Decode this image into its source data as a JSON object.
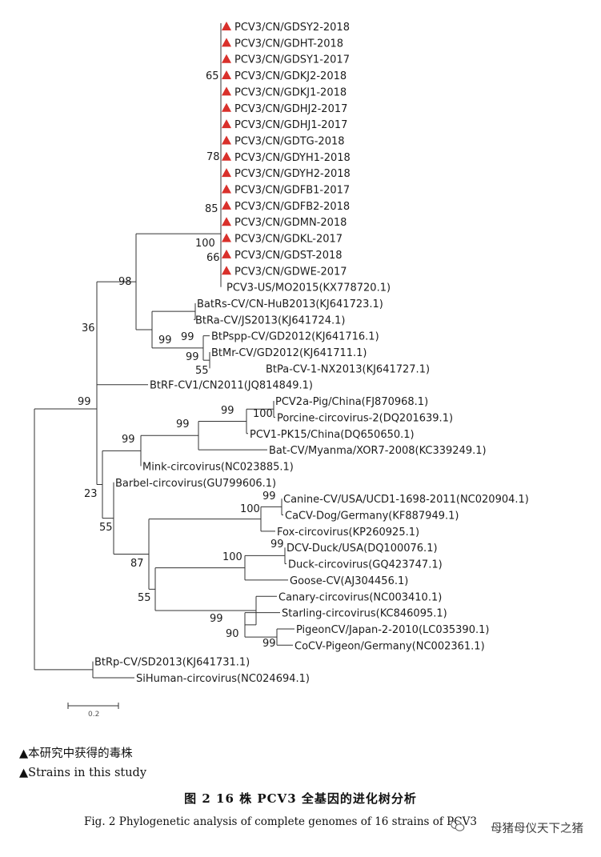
{
  "tree": {
    "leaves": [
      {
        "label": "PCV3/CN/GDSY2-2018",
        "marked": true
      },
      {
        "label": "PCV3/CN/GDHT-2018",
        "marked": true
      },
      {
        "label": "PCV3/CN/GDSY1-2017",
        "marked": true
      },
      {
        "label": "PCV3/CN/GDKJ2-2018",
        "marked": true
      },
      {
        "label": "PCV3/CN/GDKJ1-2018",
        "marked": true
      },
      {
        "label": "PCV3/CN/GDHJ2-2017",
        "marked": true
      },
      {
        "label": "PCV3/CN/GDHJ1-2017",
        "marked": true
      },
      {
        "label": "PCV3/CN/GDTG-2018",
        "marked": true
      },
      {
        "label": "PCV3/CN/GDYH1-2018",
        "marked": true
      },
      {
        "label": "PCV3/CN/GDYH2-2018",
        "marked": true
      },
      {
        "label": "PCV3/CN/GDFB1-2017",
        "marked": true
      },
      {
        "label": "PCV3/CN/GDFB2-2018",
        "marked": true
      },
      {
        "label": "PCV3/CN/GDMN-2018",
        "marked": true
      },
      {
        "label": "PCV3/CN/GDKL-2017",
        "marked": true
      },
      {
        "label": "PCV3/CN/GDST-2018",
        "marked": true
      },
      {
        "label": "PCV3/CN/GDWE-2017",
        "marked": true
      },
      {
        "label": "PCV3-US/MO2015(KX778720.1)",
        "marked": false
      },
      {
        "label": "BatRs-CV/CN-HuB2013(KJ641723.1)",
        "marked": false
      },
      {
        "label": "BtRa-CV/JS2013(KJ641724.1)",
        "marked": false
      },
      {
        "label": "BtPspp-CV/GD2012(KJ641716.1)",
        "marked": false
      },
      {
        "label": "BtMr-CV/GD2012(KJ641711.1)",
        "marked": false
      },
      {
        "label": "BtPa-CV-1-NX2013(KJ641727.1)",
        "marked": false
      },
      {
        "label": "BtRF-CV1/CN2011(JQ814849.1)",
        "marked": false
      },
      {
        "label": "PCV2a-Pig/China(FJ870968.1)",
        "marked": false
      },
      {
        "label": "Porcine-circovirus-2(DQ201639.1)",
        "marked": false
      },
      {
        "label": "PCV1-PK15/China(DQ650650.1)",
        "marked": false
      },
      {
        "label": "Bat-CV/Myanma/XOR7-2008(KC339249.1)",
        "marked": false
      },
      {
        "label": "Mink-circovirus(NC023885.1)",
        "marked": false
      },
      {
        "label": "Barbel-circovirus(GU799606.1)",
        "marked": false
      },
      {
        "label": "Canine-CV/USA/UCD1-1698-2011(NC020904.1)",
        "marked": false
      },
      {
        "label": "CaCV-Dog/Germany(KF887949.1)",
        "marked": false
      },
      {
        "label": "Fox-circovirus(KP260925.1)",
        "marked": false
      },
      {
        "label": "DCV-Duck/USA(DQ100076.1)",
        "marked": false
      },
      {
        "label": "Duck-circovirus(GQ423747.1)",
        "marked": false
      },
      {
        "label": "Goose-CV(AJ304456.1)",
        "marked": false
      },
      {
        "label": "Canary-circovirus(NC003410.1)",
        "marked": false
      },
      {
        "label": "Starling-circovirus(KC846095.1)",
        "marked": false
      },
      {
        "label": "PigeonCV/Japan-2-2010(LC035390.1)",
        "marked": false
      },
      {
        "label": "CoCV-Pigeon/Germany(NC002361.1)",
        "marked": false
      },
      {
        "label": "BtRp-CV/SD2013(KJ641731.1)",
        "marked": false
      },
      {
        "label": "SiHuman-circovirus(NC024694.1)",
        "marked": false
      }
    ],
    "bootstrap": [
      "65",
      "78",
      "85",
      "100",
      "66",
      "98",
      "36",
      "99",
      "99",
      "99",
      "55",
      "99",
      "99",
      "100",
      "99",
      "99",
      "23",
      "55",
      "99",
      "100",
      "87",
      "100",
      "99",
      "55",
      "99",
      "90",
      "99"
    ],
    "scale_label": "0.2",
    "marker_color": "#d9302b"
  },
  "legend": {
    "cn": "▲本研究中获得的毒株",
    "en": "▲Strains in this study"
  },
  "caption": {
    "cn": "图 2 16 株 PCV3 全基因的进化树分析",
    "en": "Fig. 2 Phylogenetic analysis of complete genomes of 16 strains of PCV3"
  },
  "watermark": "母猪母仪天下之猪"
}
